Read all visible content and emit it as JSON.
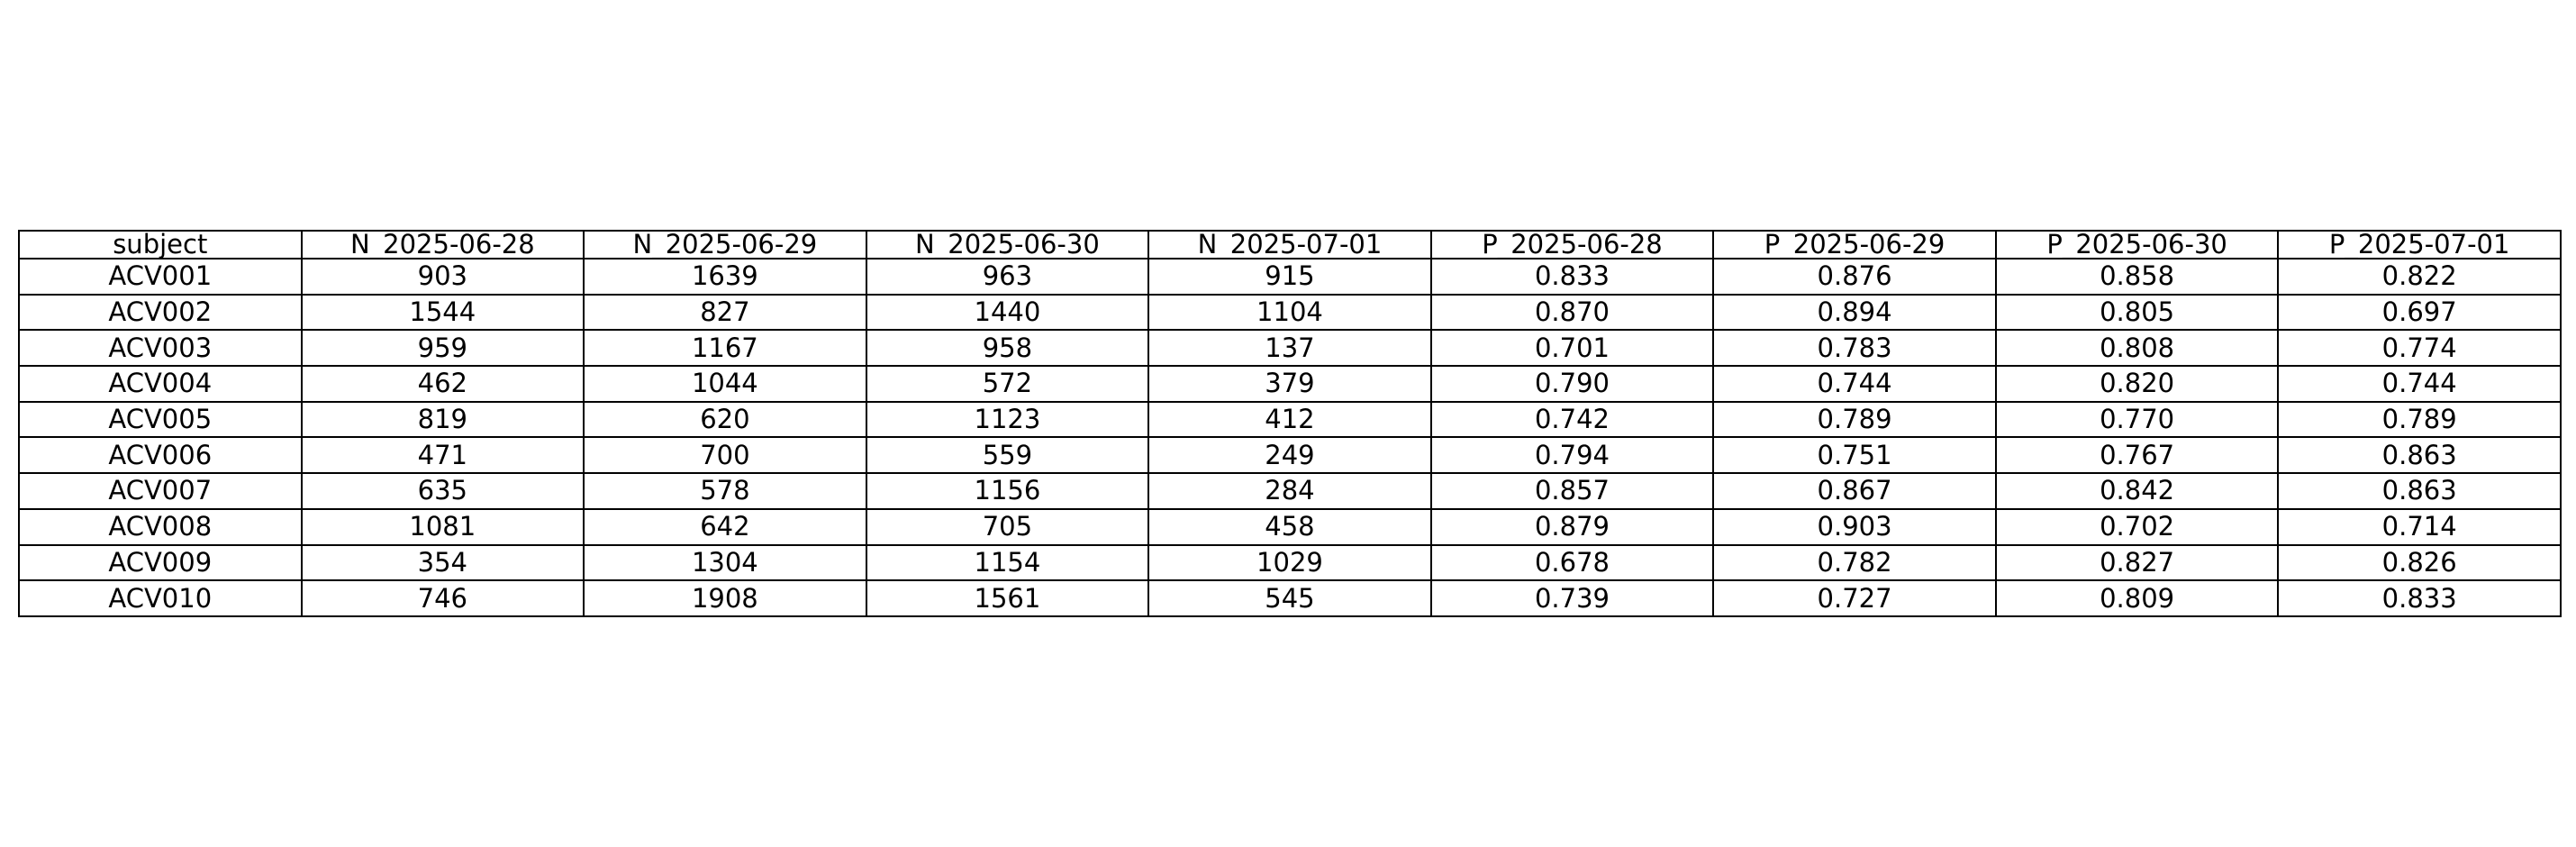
{
  "chart_data": {
    "type": "table",
    "columns": [
      "subject",
      "N_2025-06-28",
      "N_2025-06-29",
      "N_2025-06-30",
      "N_2025-07-01",
      "P_2025-06-28",
      "P_2025-06-29",
      "P_2025-06-30",
      "P_2025-07-01"
    ],
    "rows": [
      [
        "ACV001",
        "903",
        "1639",
        "963",
        "915",
        "0.833",
        "0.876",
        "0.858",
        "0.822"
      ],
      [
        "ACV002",
        "1544",
        "827",
        "1440",
        "1104",
        "0.870",
        "0.894",
        "0.805",
        "0.697"
      ],
      [
        "ACV003",
        "959",
        "1167",
        "958",
        "137",
        "0.701",
        "0.783",
        "0.808",
        "0.774"
      ],
      [
        "ACV004",
        "462",
        "1044",
        "572",
        "379",
        "0.790",
        "0.744",
        "0.820",
        "0.744"
      ],
      [
        "ACV005",
        "819",
        "620",
        "1123",
        "412",
        "0.742",
        "0.789",
        "0.770",
        "0.789"
      ],
      [
        "ACV006",
        "471",
        "700",
        "559",
        "249",
        "0.794",
        "0.751",
        "0.767",
        "0.863"
      ],
      [
        "ACV007",
        "635",
        "578",
        "1156",
        "284",
        "0.857",
        "0.867",
        "0.842",
        "0.863"
      ],
      [
        "ACV008",
        "1081",
        "642",
        "705",
        "458",
        "0.879",
        "0.903",
        "0.702",
        "0.714"
      ],
      [
        "ACV009",
        "354",
        "1304",
        "1154",
        "1029",
        "0.678",
        "0.782",
        "0.827",
        "0.826"
      ],
      [
        "ACV010",
        "746",
        "1908",
        "1561",
        "545",
        "0.739",
        "0.727",
        "0.809",
        "0.833"
      ]
    ]
  }
}
